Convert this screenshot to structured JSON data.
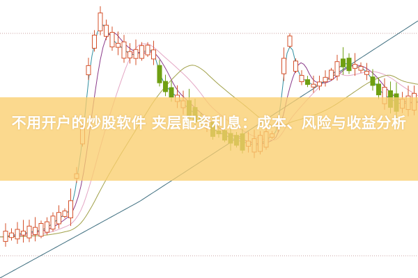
{
  "title": "不用开户的炒股软件 夹层配资利息：成本、风险与收益分析",
  "colors": {
    "up": "#d4502a",
    "down": "#6f9f12",
    "banner": "#facf6e"
  }
}
